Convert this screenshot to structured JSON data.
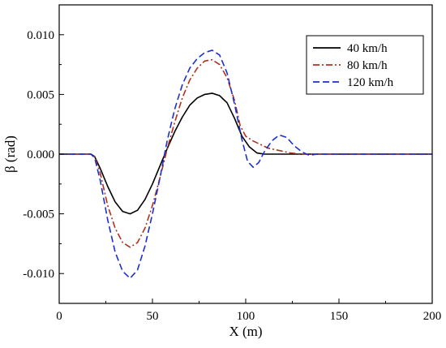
{
  "chart_data": {
    "type": "line",
    "title": "",
    "xlabel": "X (m)",
    "ylabel": "β (rad)",
    "xlim": [
      0,
      200
    ],
    "ylim": [
      -0.0125,
      0.0125
    ],
    "x_ticks": [
      0,
      50,
      100,
      150,
      200
    ],
    "x_tick_labels": [
      "0",
      "50",
      "100",
      "150",
      "200"
    ],
    "y_ticks": [
      -0.01,
      -0.005,
      0.0,
      0.005,
      0.01
    ],
    "y_tick_labels": [
      "-0.010",
      "-0.005",
      "0.000",
      "0.005",
      "0.010"
    ],
    "grid": false,
    "legend_position": "top-right",
    "series": [
      {
        "name": "40 km/h",
        "color": "#000000",
        "dash": "solid",
        "points": [
          [
            0,
            0
          ],
          [
            17,
            0
          ],
          [
            19,
            -0.0002
          ],
          [
            22,
            -0.0012
          ],
          [
            26,
            -0.0027
          ],
          [
            30,
            -0.004
          ],
          [
            34,
            -0.0048
          ],
          [
            38,
            -0.005
          ],
          [
            42,
            -0.0047
          ],
          [
            46,
            -0.0038
          ],
          [
            50,
            -0.0025
          ],
          [
            54,
            -0.001
          ],
          [
            58,
            0.0005
          ],
          [
            62,
            0.0019
          ],
          [
            66,
            0.0031
          ],
          [
            70,
            0.0041
          ],
          [
            74,
            0.0047
          ],
          [
            78,
            0.005
          ],
          [
            82,
            0.0051
          ],
          [
            86,
            0.0049
          ],
          [
            90,
            0.0043
          ],
          [
            94,
            0.003
          ],
          [
            98,
            0.0015
          ],
          [
            102,
            0.0006
          ],
          [
            106,
            0.0001
          ],
          [
            110,
            0
          ],
          [
            200,
            0
          ]
        ]
      },
      {
        "name": "80 km/h",
        "color": "#b0301e",
        "dash": "dashdot",
        "points": [
          [
            0,
            0
          ],
          [
            17,
            0
          ],
          [
            19,
            -0.0002
          ],
          [
            22,
            -0.0016
          ],
          [
            26,
            -0.0043
          ],
          [
            30,
            -0.0062
          ],
          [
            34,
            -0.0074
          ],
          [
            38,
            -0.0078
          ],
          [
            42,
            -0.0074
          ],
          [
            46,
            -0.0062
          ],
          [
            50,
            -0.0043
          ],
          [
            54,
            -0.002
          ],
          [
            58,
            0.0005
          ],
          [
            62,
            0.0027
          ],
          [
            66,
            0.0047
          ],
          [
            70,
            0.0062
          ],
          [
            74,
            0.0072
          ],
          [
            78,
            0.0078
          ],
          [
            82,
            0.0079
          ],
          [
            86,
            0.0075
          ],
          [
            90,
            0.0064
          ],
          [
            94,
            0.0045
          ],
          [
            97,
            0.0024
          ],
          [
            100,
            0.0015
          ],
          [
            104,
            0.0011
          ],
          [
            108,
            0.0008
          ],
          [
            112,
            0.0005
          ],
          [
            118,
            0.0003
          ],
          [
            124,
            0.0001
          ],
          [
            130,
            0
          ],
          [
            200,
            0
          ]
        ]
      },
      {
        "name": "120 km/h",
        "color": "#1c2ecf",
        "dash": "dashed",
        "points": [
          [
            0,
            0
          ],
          [
            17,
            0
          ],
          [
            19,
            -0.0003
          ],
          [
            22,
            -0.0022
          ],
          [
            26,
            -0.0055
          ],
          [
            30,
            -0.0082
          ],
          [
            34,
            -0.0098
          ],
          [
            38,
            -0.0104
          ],
          [
            42,
            -0.0097
          ],
          [
            46,
            -0.0077
          ],
          [
            50,
            -0.005
          ],
          [
            54,
            -0.002
          ],
          [
            58,
            0.0012
          ],
          [
            62,
            0.0038
          ],
          [
            66,
            0.0058
          ],
          [
            70,
            0.0072
          ],
          [
            74,
            0.008
          ],
          [
            78,
            0.0085
          ],
          [
            82,
            0.0087
          ],
          [
            86,
            0.0083
          ],
          [
            90,
            0.0068
          ],
          [
            94,
            0.0042
          ],
          [
            98,
            0.0012
          ],
          [
            101,
            -0.0006
          ],
          [
            104,
            -0.0011
          ],
          [
            107,
            -0.0007
          ],
          [
            110,
            0.0002
          ],
          [
            114,
            0.0011
          ],
          [
            118,
            0.0016
          ],
          [
            122,
            0.0014
          ],
          [
            126,
            0.0007
          ],
          [
            130,
            0.0002
          ],
          [
            134,
            -0.0001
          ],
          [
            138,
            0
          ],
          [
            200,
            0
          ]
        ]
      }
    ]
  }
}
